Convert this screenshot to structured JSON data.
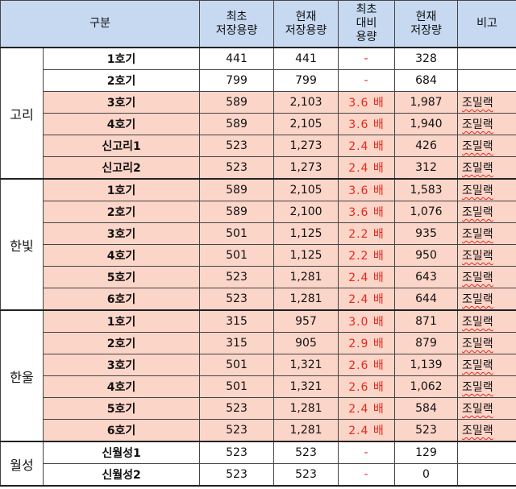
{
  "headers": {
    "category": "구분",
    "initial_capacity": [
      "최초",
      "저장용량"
    ],
    "current_capacity": [
      "현재",
      "저장용량"
    ],
    "ratio": [
      "최초",
      "대비",
      "용량"
    ],
    "current_storage": [
      "현재",
      "저장량"
    ],
    "remarks": "비고"
  },
  "groups": [
    {
      "name": "고리",
      "rows": [
        {
          "unit": "1호기",
          "initial": "441",
          "current": "441",
          "ratio": "-",
          "stored": "328",
          "note": "",
          "highlight": false
        },
        {
          "unit": "2호기",
          "initial": "799",
          "current": "799",
          "ratio": "-",
          "stored": "684",
          "note": "",
          "highlight": false
        },
        {
          "unit": "3호기",
          "initial": "589",
          "current": "2,103",
          "ratio": "3.6 배",
          "stored": "1,987",
          "note": "조밀랙",
          "highlight": true
        },
        {
          "unit": "4호기",
          "initial": "589",
          "current": "2,105",
          "ratio": "3.6 배",
          "stored": "1,940",
          "note": "조밀랙",
          "highlight": true
        },
        {
          "unit": "신고리1",
          "initial": "523",
          "current": "1,273",
          "ratio": "2.4 배",
          "stored": "426",
          "note": "조밀랙",
          "highlight": true
        },
        {
          "unit": "신고리2",
          "initial": "523",
          "current": "1,273",
          "ratio": "2.4 배",
          "stored": "312",
          "note": "조밀랙",
          "highlight": true
        }
      ]
    },
    {
      "name": "한빛",
      "rows": [
        {
          "unit": "1호기",
          "initial": "589",
          "current": "2,105",
          "ratio": "3.6 배",
          "stored": "1,583",
          "note": "조밀랙",
          "highlight": true
        },
        {
          "unit": "2호기",
          "initial": "589",
          "current": "2,100",
          "ratio": "3.6 배",
          "stored": "1,076",
          "note": "조밀랙",
          "highlight": true
        },
        {
          "unit": "3호기",
          "initial": "501",
          "current": "1,125",
          "ratio": "2.2 배",
          "stored": "935",
          "note": "조밀랙",
          "highlight": true
        },
        {
          "unit": "4호기",
          "initial": "501",
          "current": "1,125",
          "ratio": "2.2 배",
          "stored": "950",
          "note": "조밀랙",
          "highlight": true
        },
        {
          "unit": "5호기",
          "initial": "523",
          "current": "1,281",
          "ratio": "2.4 배",
          "stored": "643",
          "note": "조밀랙",
          "highlight": true
        },
        {
          "unit": "6호기",
          "initial": "523",
          "current": "1,281",
          "ratio": "2.4 배",
          "stored": "644",
          "note": "조밀랙",
          "highlight": true
        }
      ]
    },
    {
      "name": "한울",
      "rows": [
        {
          "unit": "1호기",
          "initial": "315",
          "current": "957",
          "ratio": "3.0 배",
          "stored": "871",
          "note": "조밀랙",
          "highlight": true
        },
        {
          "unit": "2호기",
          "initial": "315",
          "current": "905",
          "ratio": "2.9 배",
          "stored": "879",
          "note": "조밀랙",
          "highlight": true
        },
        {
          "unit": "3호기",
          "initial": "501",
          "current": "1,321",
          "ratio": "2.6 배",
          "stored": "1,139",
          "note": "조밀랙",
          "highlight": true
        },
        {
          "unit": "4호기",
          "initial": "501",
          "current": "1,321",
          "ratio": "2.6 배",
          "stored": "1,062",
          "note": "조밀랙",
          "highlight": true
        },
        {
          "unit": "5호기",
          "initial": "523",
          "current": "1,281",
          "ratio": "2.4 배",
          "stored": "584",
          "note": "조밀랙",
          "highlight": true
        },
        {
          "unit": "6호기",
          "initial": "523",
          "current": "1,281",
          "ratio": "2.4 배",
          "stored": "523",
          "note": "조밀랙",
          "highlight": true
        }
      ]
    },
    {
      "name": "월성",
      "rows": [
        {
          "unit": "신월성1",
          "initial": "523",
          "current": "523",
          "ratio": "-",
          "stored": "129",
          "note": "",
          "highlight": false
        },
        {
          "unit": "신월성2",
          "initial": "523",
          "current": "523",
          "ratio": "-",
          "stored": "0",
          "note": "",
          "highlight": false
        }
      ]
    }
  ],
  "colors": {
    "header_bg": "#c6d9f1",
    "highlight_bg": "#fcd5c9",
    "ratio_text": "#e8281c"
  }
}
